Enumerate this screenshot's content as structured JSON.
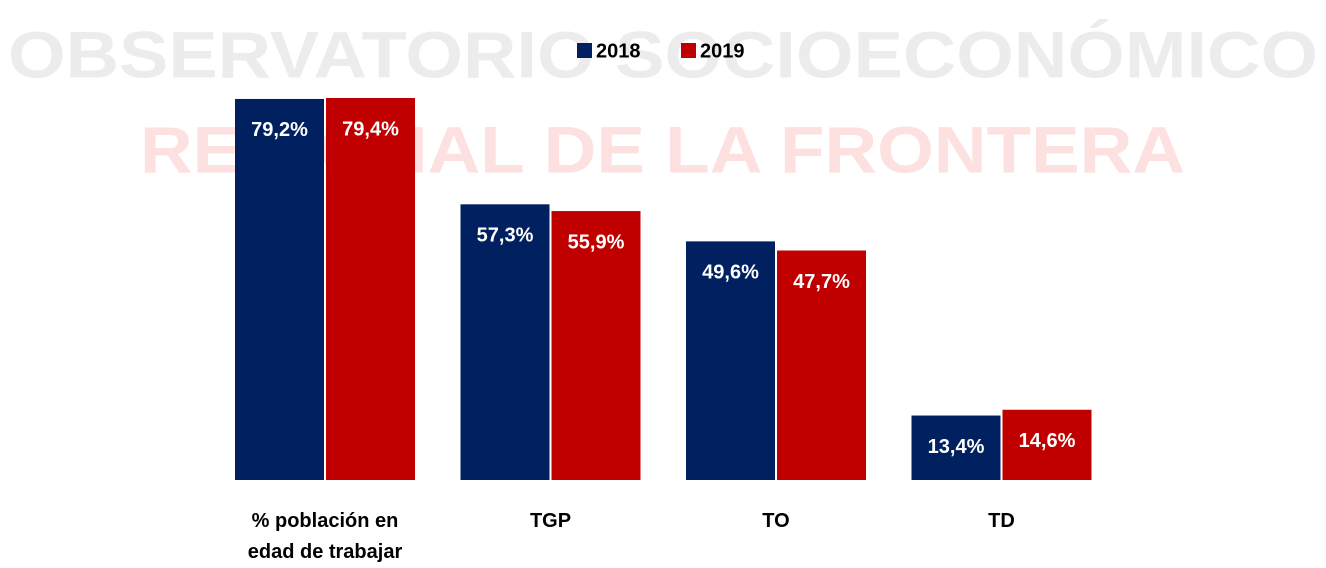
{
  "chart_data": {
    "type": "bar",
    "watermark": [
      "OBSERVATORIO SOCIOECONÓMICO",
      "REGIONAL DE LA FRONTERA"
    ],
    "categories": [
      "% población en edad de trabajar",
      "TGP",
      "TO",
      "TD"
    ],
    "series": [
      {
        "name": "2018",
        "color": "#002060",
        "values": [
          79.2,
          57.3,
          49.6,
          13.4
        ],
        "value_labels": [
          "79,2%",
          "57,3%",
          "49,6%",
          "13,4%"
        ]
      },
      {
        "name": "2019",
        "color": "#c00000",
        "values": [
          79.4,
          55.9,
          47.7,
          14.6
        ],
        "value_labels": [
          "79,4%",
          "55,9%",
          "47,7%",
          "14,6%"
        ]
      }
    ],
    "legend": "top"
  }
}
